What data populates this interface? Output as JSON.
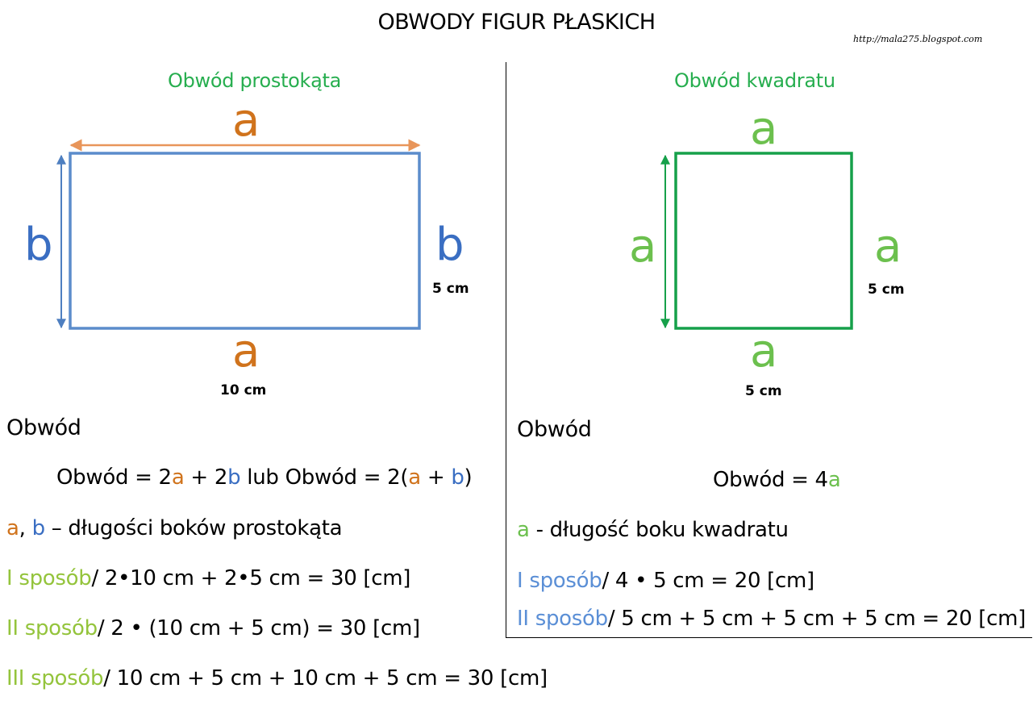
{
  "title": "OBWODY FIGUR PŁASKICH",
  "source_url": "http://mala275.blogspot.com",
  "colors": {
    "rect_outline": "#5b8ccb",
    "rect_arrow_top": "#e8955a",
    "rect_arrow_side": "#4e7fc0",
    "square_outline": "#16a04a",
    "letter_a_orange": "#d0731c",
    "letter_b_blue": "#3a6ec2",
    "letter_a_green": "#6cc04e",
    "section_title_green": "#27ae4f",
    "method_green": "#94c43c",
    "method_blue": "#5b8fd6"
  },
  "rectangle": {
    "section_title": "Obwód prostokąta",
    "letter_top": "a",
    "letter_bottom": "a",
    "letter_left": "b",
    "letter_right": "b",
    "side_label": "5 cm",
    "bottom_label": "10 cm",
    "heading": "Obwód",
    "formula": {
      "p1": "Obwód = 2",
      "a1": "a",
      "p2": " + 2",
      "b1": "b",
      "p3": " lub ",
      "p4": "Obwód = 2(",
      "a2": "a",
      "p5": " + ",
      "b2": "b",
      "p6": ")"
    },
    "legend": {
      "a": "a",
      "sep": ", ",
      "b": "b",
      "text": " – długości boków prostokąta"
    },
    "methods": [
      {
        "label": "I sposób",
        "text": "/ 2•10 cm + 2•5 cm = 30 [cm]"
      },
      {
        "label": "II sposób",
        "text": "/ 2 • (10 cm + 5 cm) = 30 [cm]"
      },
      {
        "label": "III sposób",
        "text": "/ 10 cm + 5 cm + 10 cm + 5 cm = 30 [cm]"
      }
    ]
  },
  "square": {
    "section_title": "Obwód kwadratu",
    "letter_top": "a",
    "letter_bottom": "a",
    "letter_left": "a",
    "letter_right": "a",
    "side_label": "5 cm",
    "bottom_label": "5 cm",
    "heading": "Obwód",
    "formula": {
      "p1": "Obwód = 4",
      "a1": "a"
    },
    "legend": {
      "a": "a",
      "text": " - długość boku kwadratu"
    },
    "methods": [
      {
        "label": "I sposób",
        "text": "/ 4 • 5 cm = 20 [cm]"
      },
      {
        "label": "II sposób",
        "text": "/ 5 cm + 5 cm + 5 cm + 5 cm = 20 [cm]"
      }
    ]
  }
}
